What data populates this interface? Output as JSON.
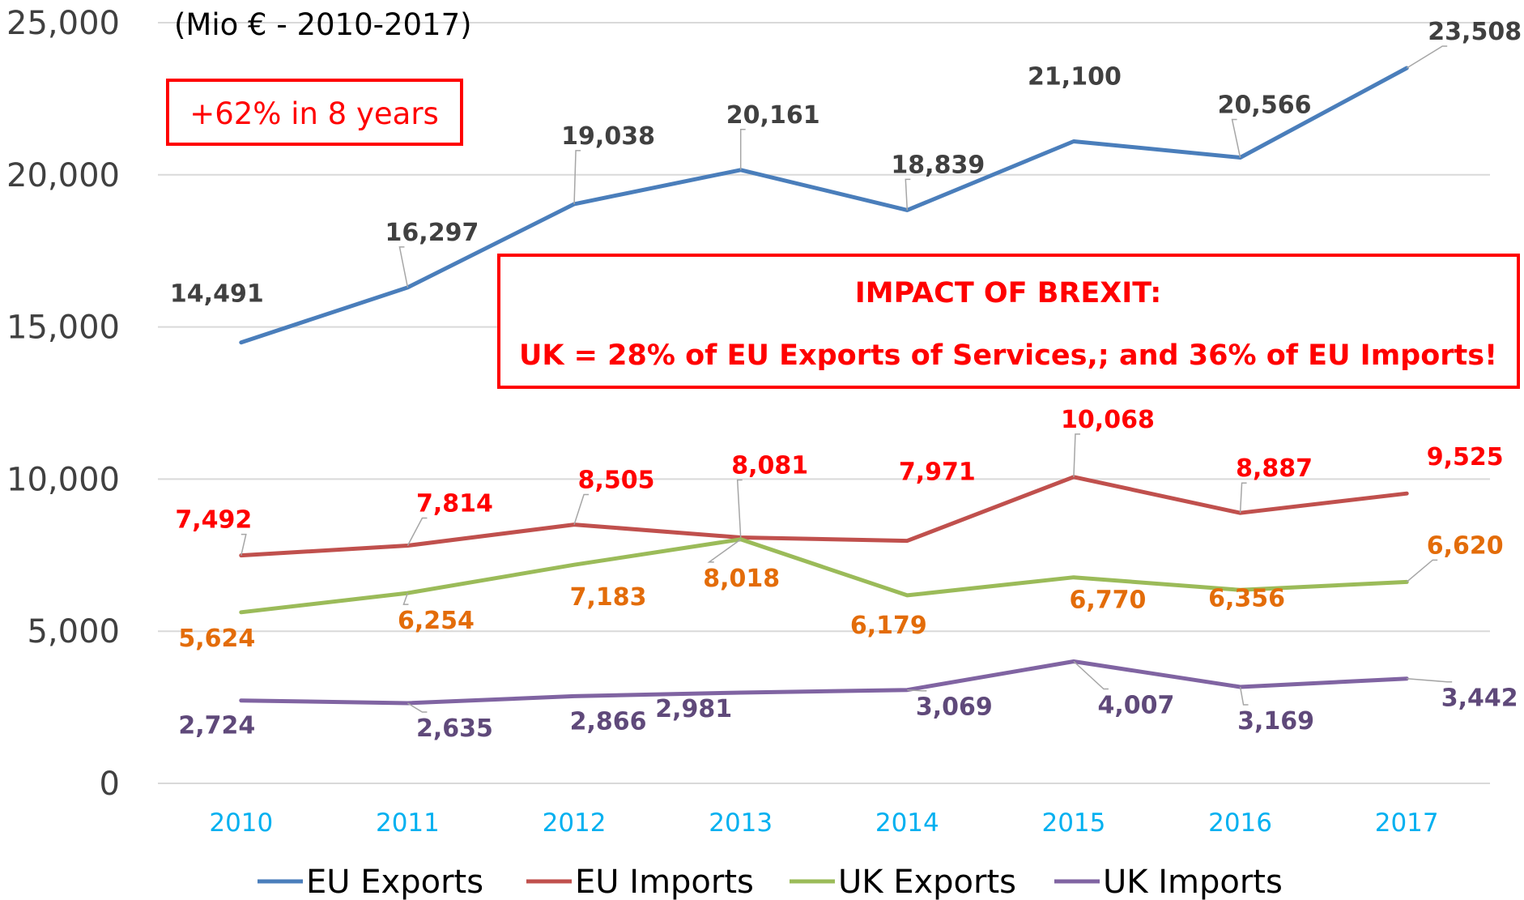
{
  "chart_data": {
    "type": "line",
    "title": "",
    "subtitle": "(Mio € - 2010-2017)",
    "xlabel": "",
    "ylabel": "",
    "categories": [
      "2010",
      "2011",
      "2012",
      "2013",
      "2014",
      "2015",
      "2016",
      "2017"
    ],
    "ylim": [
      0,
      25000
    ],
    "yticks": [
      0,
      5000,
      10000,
      15000,
      20000,
      25000
    ],
    "ytick_labels": [
      "0",
      "5,000",
      "10,000",
      "15,000",
      "20,000",
      "25,000"
    ],
    "grid": "horizontal",
    "legend_position": "bottom",
    "series": [
      {
        "name": "EU Exports",
        "color": "#4a7ebb",
        "label_color": "#404040",
        "values": [
          14491,
          16297,
          19038,
          20161,
          18839,
          21100,
          20566,
          23508
        ],
        "labels": [
          "14,491",
          "16,297",
          "19,038",
          "20,161",
          "18,839",
          "21,100",
          "20,566",
          "23,508"
        ]
      },
      {
        "name": "EU Imports",
        "color": "#c0504d",
        "label_color": "#ff0000",
        "values": [
          7492,
          7814,
          8505,
          8081,
          7971,
          10068,
          8887,
          9525
        ],
        "labels": [
          "7,492",
          "7,814",
          "8,505",
          "8,081",
          "7,971",
          "10,068",
          "8,887",
          "9,525"
        ]
      },
      {
        "name": "UK Exports",
        "color": "#9bbb59",
        "label_color": "#e36c09",
        "values": [
          5624,
          6254,
          7183,
          8018,
          6179,
          6770,
          6356,
          6620
        ],
        "labels": [
          "5,624",
          "6,254",
          "7,183",
          "8,018",
          "6,179",
          "6,770",
          "6,356",
          "6,620"
        ]
      },
      {
        "name": "UK Imports",
        "color": "#8064a2",
        "label_color": "#5f497a",
        "values": [
          2724,
          2635,
          2866,
          2981,
          3069,
          4007,
          3169,
          3442
        ],
        "labels": [
          "2,724",
          "2,635",
          "2,866",
          "2,981",
          "3,069",
          "4,007",
          "3,169",
          "3,442"
        ]
      }
    ],
    "annotations": {
      "growth": "+62% in 8 years",
      "brexit_title": "IMPACT OF BREXIT:",
      "brexit_text": "UK = 28% of EU Exports of Services,; and 36% of  EU Imports!"
    }
  }
}
